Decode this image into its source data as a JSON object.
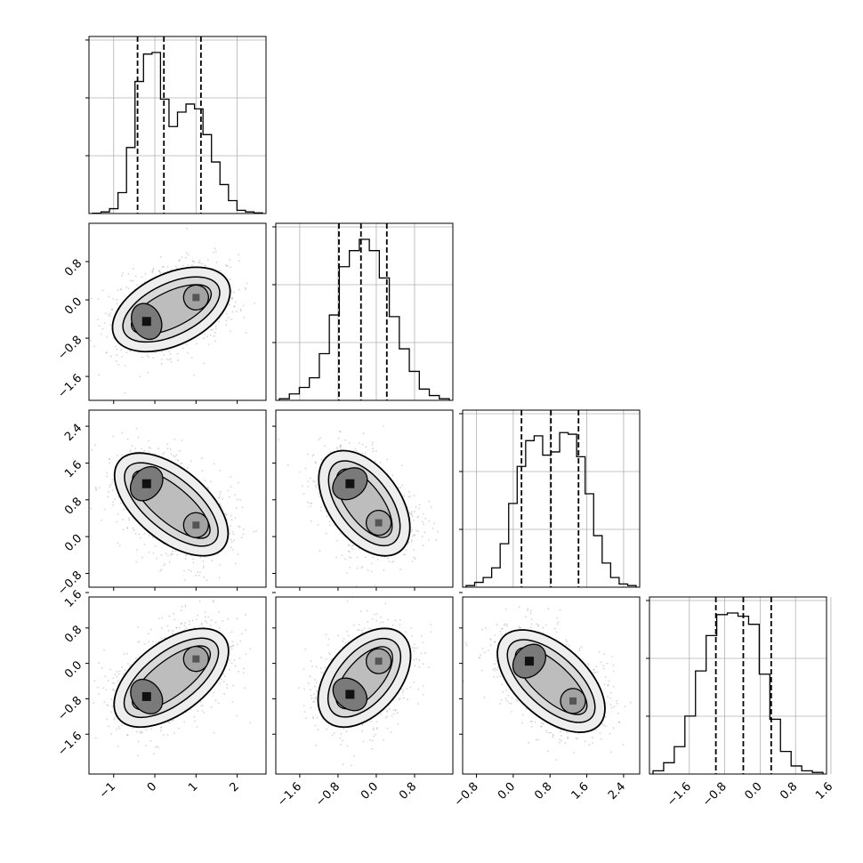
{
  "chart_data": {
    "type": "corner",
    "grid": true,
    "n_params": 4,
    "params": [
      {
        "range": [
          -1.6,
          2.7
        ],
        "ticks": [
          -1,
          0,
          1,
          2
        ],
        "tick_labels": [
          "−1",
          "0",
          "1",
          "2"
        ],
        "quantiles": [
          -0.42,
          0.22,
          1.12
        ],
        "hist": [
          0.002,
          0.01,
          0.03,
          0.13,
          0.41,
          0.82,
          0.99,
          1.0,
          0.71,
          0.54,
          0.63,
          0.68,
          0.65,
          0.49,
          0.32,
          0.18,
          0.08,
          0.02,
          0.01,
          0.004
        ]
      },
      {
        "range": [
          -2.1,
          1.6
        ],
        "ticks": [
          -1.6,
          -0.8,
          0.0,
          0.8
        ],
        "tick_labels": [
          "−1.6",
          "−0.8",
          "0.0",
          "0.8"
        ],
        "quantiles": [
          -0.78,
          -0.32,
          0.22
        ],
        "hist": [
          0.01,
          0.04,
          0.08,
          0.14,
          0.29,
          0.53,
          0.83,
          0.93,
          1.0,
          0.93,
          0.76,
          0.52,
          0.32,
          0.18,
          0.07,
          0.03,
          0.01
        ]
      },
      {
        "range": [
          -1.1,
          2.75
        ],
        "ticks": [
          -0.8,
          0.0,
          0.8,
          1.6,
          2.4
        ],
        "tick_labels": [
          "−0.8",
          "0.0",
          "0.8",
          "1.6",
          "2.4"
        ],
        "quantiles": [
          0.18,
          0.82,
          1.42
        ],
        "hist": [
          0.01,
          0.03,
          0.06,
          0.12,
          0.27,
          0.52,
          0.75,
          0.91,
          0.94,
          0.82,
          0.84,
          0.96,
          0.95,
          0.81,
          0.58,
          0.32,
          0.15,
          0.06,
          0.02,
          0.01
        ]
      },
      {
        "range": [
          -2.5,
          1.5
        ],
        "ticks": [
          -1.6,
          -0.8,
          0.0,
          0.8,
          1.6
        ],
        "tick_labels": [
          "−1.6",
          "−0.8",
          "0.0",
          "0.8",
          "1.6"
        ],
        "quantiles": [
          -1.0,
          -0.38,
          0.25
        ],
        "hist": [
          0.02,
          0.07,
          0.17,
          0.36,
          0.64,
          0.86,
          0.99,
          1.0,
          0.98,
          0.93,
          0.62,
          0.34,
          0.14,
          0.05,
          0.02,
          0.01
        ]
      }
    ],
    "y_tick_labels_left": {
      "row_1": [
        "−1.6",
        "−0.8",
        "0.0",
        "0.8"
      ],
      "row_2": [
        "−0.8",
        "0.0",
        "0.8",
        "1.6",
        "2.4"
      ],
      "row_3": [
        "−1.6",
        "−0.8",
        "0.0",
        "0.8",
        "1.6"
      ]
    },
    "joint_modes": {
      "p1_vs_p0": [
        {
          "x": -0.2,
          "y": -0.45
        },
        {
          "x": 1.0,
          "y": 0.05
        }
      ],
      "p2_vs_p0": [
        {
          "x": -0.2,
          "y": 1.15
        },
        {
          "x": 1.0,
          "y": 0.25
        }
      ],
      "p2_vs_p1": [
        {
          "x": -0.55,
          "y": 1.15
        },
        {
          "x": 0.05,
          "y": 0.3
        }
      ],
      "p3_vs_p0": [
        {
          "x": -0.2,
          "y": -0.75
        },
        {
          "x": 1.0,
          "y": 0.1
        }
      ],
      "p3_vs_p1": [
        {
          "x": -0.55,
          "y": -0.7
        },
        {
          "x": 0.05,
          "y": 0.05
        }
      ],
      "p3_vs_p2": [
        {
          "x": 0.35,
          "y": 0.05
        },
        {
          "x": 1.3,
          "y": -0.85
        }
      ]
    },
    "contour_levels": 4
  }
}
